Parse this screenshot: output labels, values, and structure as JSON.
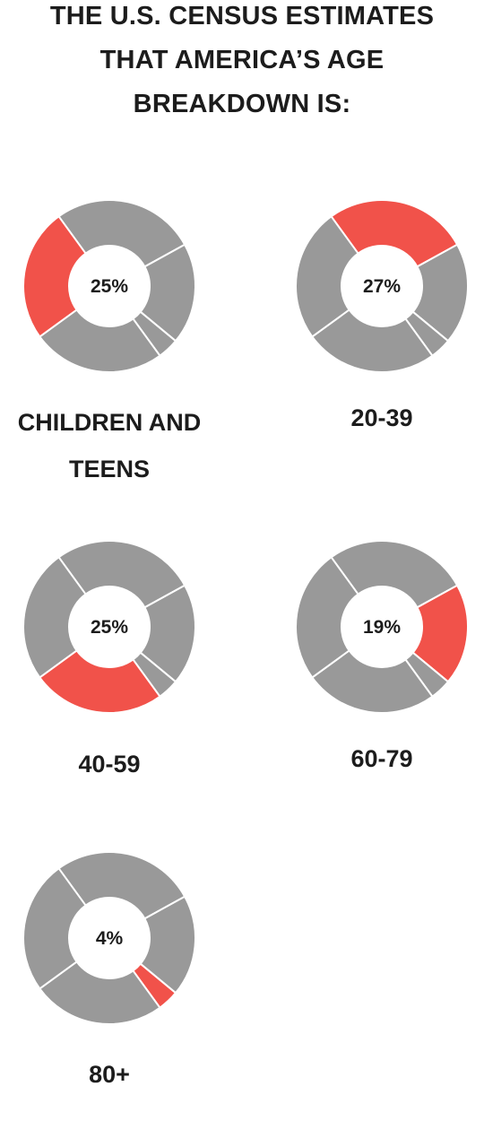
{
  "title": {
    "lines": [
      "THE U.S. CENSUS ESTIMATES",
      "THAT AMERICA’S AGE",
      "BREAKDOWN IS:"
    ]
  },
  "colors": {
    "highlight": "#f1524a",
    "base": "#999999",
    "divider": "#ffffff",
    "text": "#1c1c1c"
  },
  "chart_data": {
    "type": "pie",
    "variant": "donut",
    "categories": [
      "CHILDREN AND TEENS",
      "20-39",
      "40-59",
      "60-79",
      "80+"
    ],
    "values": [
      25,
      27,
      25,
      19,
      4
    ],
    "value_labels": [
      "25%",
      "27%",
      "25%",
      "19%",
      "4%"
    ],
    "unit": "%"
  }
}
